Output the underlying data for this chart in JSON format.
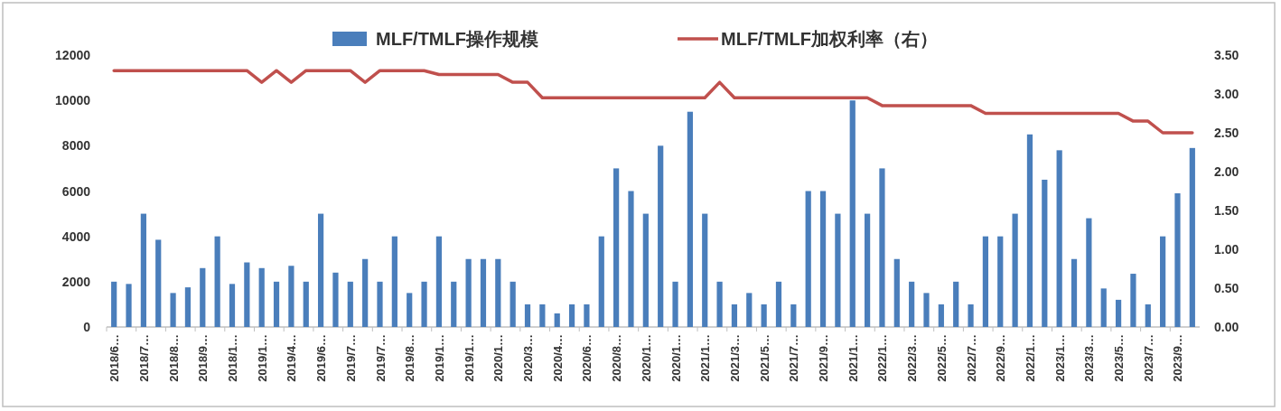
{
  "chart_data": {
    "type": "bar",
    "categories": [
      "2018/6…",
      null,
      "2018/7…",
      null,
      "2018/8…",
      null,
      "2018/9…",
      null,
      "2018/1…",
      null,
      "2019/1…",
      null,
      "2019/4…",
      null,
      "2019/6…",
      null,
      "2019/7…",
      null,
      "2019/7…",
      null,
      "2019/8…",
      null,
      "2019/1…",
      null,
      "2019/1…",
      null,
      "2020/1…",
      null,
      "2020/3…",
      null,
      "2020/4…",
      null,
      "2020/6…",
      null,
      "2020/8…",
      null,
      "2020/1…",
      null,
      "2020/1…",
      null,
      "2021/1…",
      null,
      "2021/3…",
      null,
      "2021/5…",
      null,
      "2021/7…",
      null,
      "2021/9…",
      null,
      "2021/1…",
      null,
      "2022/1…",
      null,
      "2022/3…",
      null,
      "2022/5…",
      null,
      "2022/7…",
      null,
      "2022/9…",
      null,
      "2022/1…",
      null,
      "2023/1…",
      null,
      "2023/3…",
      null,
      "2023/5…",
      null,
      "2023/7…",
      null,
      "2023/9…",
      null
    ],
    "series": [
      {
        "name": "MLF/TMLF操作规模",
        "color": "#4a7ebb",
        "values": [
          2000,
          1900,
          5000,
          3850,
          1500,
          1750,
          2600,
          4000,
          1900,
          2850,
          2600,
          2000,
          2700,
          2000,
          5000,
          2400,
          2000,
          3000,
          2000,
          4000,
          1500,
          2000,
          4000,
          2000,
          3000,
          3000,
          3000,
          2000,
          1000,
          1000,
          600,
          1000,
          1000,
          4000,
          7000,
          6000,
          5000,
          8000,
          2000,
          9500,
          5000,
          2000,
          1000,
          1500,
          1000,
          2000,
          1000,
          6000,
          6000,
          5000,
          10000,
          5000,
          7000,
          3000,
          2000,
          1500,
          1000,
          2000,
          1000,
          4000,
          4000,
          5000,
          8500,
          6500,
          7800,
          3000,
          4800,
          1700,
          1200,
          2350,
          1000,
          4000,
          5900,
          7900
        ]
      },
      {
        "name": "MLF/TMLF加权利率（右）",
        "type": "line",
        "axis": "y2",
        "color": "#c0504d",
        "values": [
          3.3,
          3.3,
          3.3,
          3.3,
          3.3,
          3.3,
          3.3,
          3.3,
          3.3,
          3.3,
          3.15,
          3.3,
          3.15,
          3.3,
          3.3,
          3.3,
          3.3,
          3.15,
          3.3,
          3.3,
          3.3,
          3.3,
          3.25,
          3.25,
          3.25,
          3.25,
          3.25,
          3.15,
          3.15,
          2.95,
          2.95,
          2.95,
          2.95,
          2.95,
          2.95,
          2.95,
          2.95,
          2.95,
          2.95,
          2.95,
          2.95,
          3.15,
          2.95,
          2.95,
          2.95,
          2.95,
          2.95,
          2.95,
          2.95,
          2.95,
          2.95,
          2.95,
          2.85,
          2.85,
          2.85,
          2.85,
          2.85,
          2.85,
          2.85,
          2.75,
          2.75,
          2.75,
          2.75,
          2.75,
          2.75,
          2.75,
          2.75,
          2.75,
          2.75,
          2.65,
          2.65,
          2.5,
          2.5,
          2.5
        ]
      }
    ],
    "ylim": [
      0,
      12000
    ],
    "yticks": [
      0,
      2000,
      4000,
      6000,
      8000,
      10000,
      12000
    ],
    "y2lim": [
      0,
      3.5
    ],
    "y2ticks": [
      {
        "value": 0,
        "label": "0.00"
      },
      {
        "value": 0.5,
        "label": "0.50"
      },
      {
        "value": 1,
        "label": "1.00"
      },
      {
        "value": 1.5,
        "label": "1.50"
      },
      {
        "value": 2,
        "label": "2.00"
      },
      {
        "value": 2.5,
        "label": "2.50"
      },
      {
        "value": 3,
        "label": "3.00"
      },
      {
        "value": 3.5,
        "label": "3.50"
      }
    ],
    "legend": "top",
    "grid": false
  }
}
